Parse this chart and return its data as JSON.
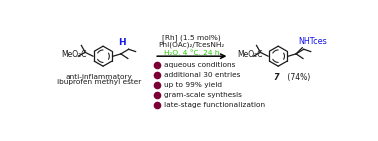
{
  "background_color": "#ffffff",
  "arrow_color": "#000000",
  "rc_line1": "[Rh] (1.5 mol%)",
  "rc_line2": "PhI(OAc)₂/TcesNH₂",
  "rc_line3_green": "H₂O, 4 °C, 24 h",
  "rc_line3_black": "",
  "h2o_color": "#22cc00",
  "product_label_bold": "7",
  "product_label_rest": " (74%)",
  "subtitle_line1": "anti-inflammatory",
  "subtitle_line2": "ibuprofen methyl ester",
  "bullet_color": "#7a0035",
  "bullet_items": [
    "aqueous conditions",
    "additional 30 entries",
    "up to 99% yield",
    "gram-scale synthesis",
    "late-stage functionalization"
  ],
  "text_color": "#1a1a1a",
  "blue_color": "#1515ee",
  "mol_color": "#1a1a1a",
  "figsize": [
    3.78,
    1.41
  ],
  "dpi": 100
}
